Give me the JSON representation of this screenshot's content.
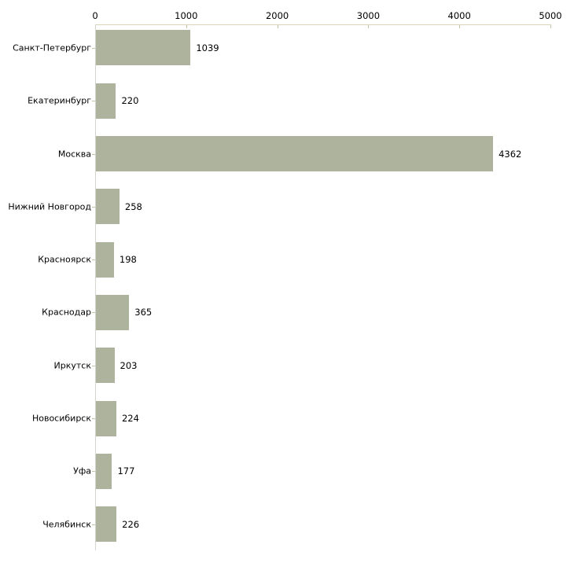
{
  "chart_data": {
    "type": "bar",
    "orientation": "horizontal",
    "title": "",
    "xlabel": "",
    "ylabel": "",
    "xlim": [
      0,
      5000
    ],
    "x_ticks": [
      0,
      1000,
      2000,
      3000,
      4000,
      5000
    ],
    "x_tick_labels": [
      "0",
      "1000",
      "2000",
      "3000",
      "4000",
      "5000"
    ],
    "grid": false,
    "legend": false,
    "value_labels_shown": true,
    "categories": [
      "Санкт-Петербург",
      "Екатеринбург",
      "Москва",
      "Нижний Новгород",
      "Красноярск",
      "Краснодар",
      "Иркутск",
      "Новосибирск",
      "Уфа",
      "Челябинск"
    ],
    "values": [
      1039,
      220,
      4362,
      258,
      198,
      365,
      203,
      224,
      177,
      226
    ],
    "value_labels": [
      "1039",
      "220",
      "4362",
      "258",
      "198",
      "365",
      "203",
      "224",
      "177",
      "226"
    ],
    "colors": {
      "bar_fill": "#adb39c",
      "x_axis_line": "#d9d6b8",
      "x_tick_mark": "#c6c39e",
      "y_axis_line": "#d4d4cf",
      "row_tick_mark": "#c6c39e",
      "text": "#000000",
      "background": "#ffffff"
    }
  }
}
